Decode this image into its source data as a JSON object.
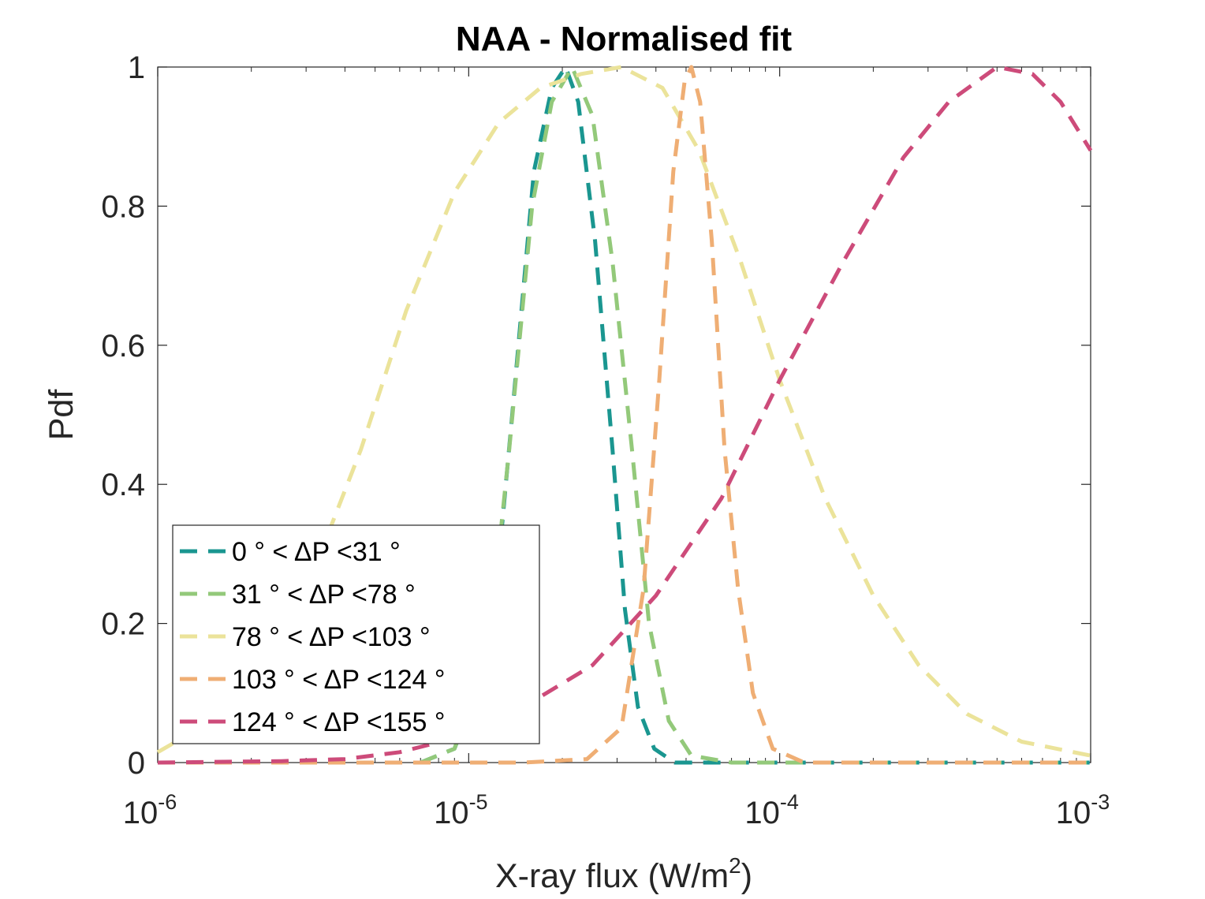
{
  "chart_data": {
    "type": "line",
    "title": "NAA - Normalised fit",
    "xlabel": {
      "base": "X-ray flux (W/m",
      "sup": "2",
      "tail": ")"
    },
    "ylabel": "Pdf",
    "xscale": "log",
    "xlim": [
      1e-06,
      0.001
    ],
    "ylim": [
      0,
      1
    ],
    "xticks": [
      {
        "value": 1e-06,
        "base": "10",
        "exp": "-6"
      },
      {
        "value": 1e-05,
        "base": "10",
        "exp": "-5"
      },
      {
        "value": 0.0001,
        "base": "10",
        "exp": "-4"
      },
      {
        "value": 0.001,
        "base": "10",
        "exp": "-3"
      }
    ],
    "yticks": [
      {
        "value": 0,
        "label": "0"
      },
      {
        "value": 0.2,
        "label": "0.2"
      },
      {
        "value": 0.4,
        "label": "0.4"
      },
      {
        "value": 0.6,
        "label": "0.6"
      },
      {
        "value": 0.8,
        "label": "0.8"
      },
      {
        "value": 1,
        "label": "1"
      }
    ],
    "grid": false,
    "legend_position": "bottom-left",
    "line_style": "dashed",
    "series": [
      {
        "name": "0  ° < ΔP <31 °",
        "color": "#1a9690",
        "peak_x": 2.05e-05,
        "points": [
          [
            7e-06,
            0.0
          ],
          [
            9e-06,
            0.02
          ],
          [
            1.17e-05,
            0.15
          ],
          [
            1.38e-05,
            0.5
          ],
          [
            1.62e-05,
            0.85
          ],
          [
            1.85e-05,
            0.97
          ],
          [
            2.05e-05,
            1.0
          ],
          [
            2.25e-05,
            0.95
          ],
          [
            2.55e-05,
            0.75
          ],
          [
            2.9e-05,
            0.45
          ],
          [
            3.18e-05,
            0.22
          ],
          [
            3.5e-05,
            0.08
          ],
          [
            3.95e-05,
            0.02
          ],
          [
            4.6e-05,
            0.0
          ],
          [
            0.001,
            0.0
          ]
        ]
      },
      {
        "name": "31  ° < ΔP <78 °",
        "color": "#93c97a",
        "peak_x": 2.15e-05,
        "points": [
          [
            7e-06,
            0.0
          ],
          [
            9e-06,
            0.02
          ],
          [
            1.15e-05,
            0.15
          ],
          [
            1.35e-05,
            0.45
          ],
          [
            1.6e-05,
            0.8
          ],
          [
            1.85e-05,
            0.95
          ],
          [
            2.15e-05,
            1.0
          ],
          [
            2.5e-05,
            0.93
          ],
          [
            2.9e-05,
            0.72
          ],
          [
            3.35e-05,
            0.45
          ],
          [
            3.8e-05,
            0.2
          ],
          [
            4.4e-05,
            0.06
          ],
          [
            5.2e-05,
            0.01
          ],
          [
            7e-05,
            0.0
          ],
          [
            0.001,
            0.0
          ]
        ]
      },
      {
        "name": "78  ° < ΔP <103 °",
        "color": "#ebe39a",
        "peak_x": 3.1e-05,
        "points": [
          [
            1e-06,
            0.015
          ],
          [
            1.5e-06,
            0.06
          ],
          [
            2.2e-06,
            0.15
          ],
          [
            3.2e-06,
            0.28
          ],
          [
            4.5e-06,
            0.45
          ],
          [
            6.3e-06,
            0.65
          ],
          [
            9e-06,
            0.82
          ],
          [
            1.25e-05,
            0.92
          ],
          [
            1.7e-05,
            0.97
          ],
          [
            2.3e-05,
            0.99
          ],
          [
            3.1e-05,
            1.0
          ],
          [
            4.2e-05,
            0.97
          ],
          [
            5.5e-05,
            0.88
          ],
          [
            7.5e-05,
            0.72
          ],
          [
            0.0001,
            0.55
          ],
          [
            0.00014,
            0.38
          ],
          [
            0.0002,
            0.24
          ],
          [
            0.00028,
            0.14
          ],
          [
            0.0004,
            0.07
          ],
          [
            0.0006,
            0.03
          ],
          [
            0.001,
            0.01
          ]
        ]
      },
      {
        "name": "103  ° < ΔP <124 °",
        "color": "#efae74",
        "peak_x": 5.2e-05,
        "points": [
          [
            1e-06,
            0.0
          ],
          [
            1.5e-05,
            0.0
          ],
          [
            2.4e-05,
            0.005
          ],
          [
            3.1e-05,
            0.05
          ],
          [
            3.65e-05,
            0.25
          ],
          [
            4.1e-05,
            0.55
          ],
          [
            4.55e-05,
            0.85
          ],
          [
            4.95e-05,
            0.98
          ],
          [
            5.2e-05,
            1.0
          ],
          [
            5.55e-05,
            0.95
          ],
          [
            6.05e-05,
            0.75
          ],
          [
            6.65e-05,
            0.45
          ],
          [
            7.35e-05,
            0.25
          ],
          [
            8.2e-05,
            0.1
          ],
          [
            9.5e-05,
            0.02
          ],
          [
            0.00012,
            0.0
          ],
          [
            0.001,
            0.0
          ]
        ]
      },
      {
        "name": "124  ° < ΔP <155 °",
        "color": "#cd4b7a",
        "peak_x": 0.0005,
        "points": [
          [
            1e-06,
            0.0
          ],
          [
            2.5e-06,
            0.002
          ],
          [
            4e-06,
            0.005
          ],
          [
            6e-06,
            0.015
          ],
          [
            1e-05,
            0.04
          ],
          [
            1.5e-05,
            0.08
          ],
          [
            2.5e-05,
            0.14
          ],
          [
            4e-05,
            0.24
          ],
          [
            6.5e-05,
            0.38
          ],
          [
            0.0001,
            0.55
          ],
          [
            0.00016,
            0.72
          ],
          [
            0.00025,
            0.87
          ],
          [
            0.00035,
            0.95
          ],
          [
            0.0005,
            1.0
          ],
          [
            0.00065,
            0.99
          ],
          [
            0.0008,
            0.95
          ],
          [
            0.001,
            0.88
          ]
        ]
      }
    ]
  }
}
